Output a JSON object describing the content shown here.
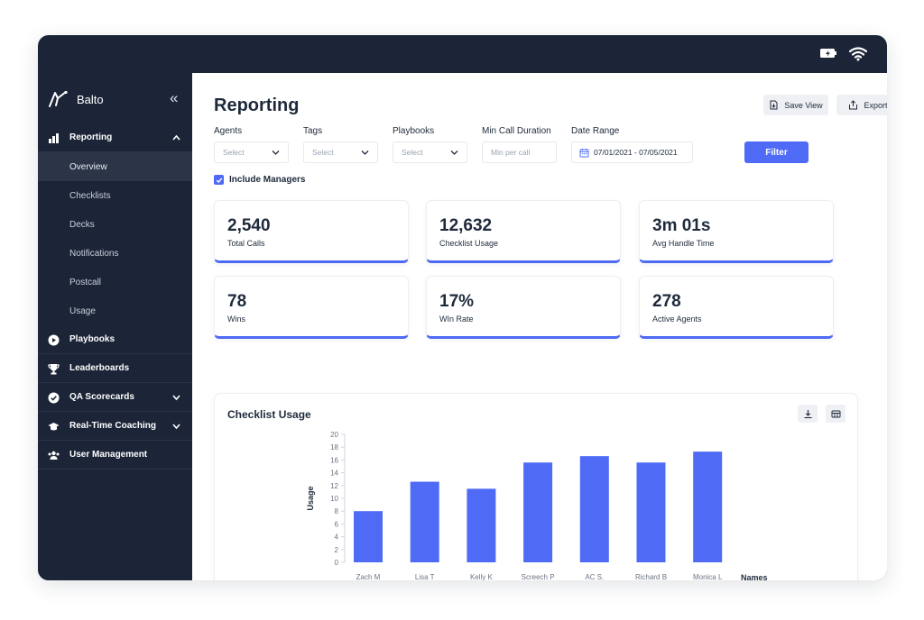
{
  "app": {
    "name": "Balto"
  },
  "sidebar": {
    "items": [
      {
        "key": "reporting",
        "label": "Reporting",
        "icon": "bar-chart-icon",
        "expanded": true,
        "children": [
          {
            "label": "Overview",
            "active": true
          },
          {
            "label": "Checklists"
          },
          {
            "label": "Decks"
          },
          {
            "label": "Notifications"
          },
          {
            "label": "Postcall"
          },
          {
            "label": "Usage"
          }
        ]
      },
      {
        "key": "playbooks",
        "label": "Playbooks",
        "icon": "play-circle-icon"
      },
      {
        "key": "leaderboards",
        "label": "Leaderboards",
        "icon": "trophy-icon"
      },
      {
        "key": "qa",
        "label": "QA Scorecards",
        "icon": "check-circle-icon",
        "caret": "down"
      },
      {
        "key": "coaching",
        "label": "Real-Time Coaching",
        "icon": "graduation-cap-icon",
        "caret": "down"
      },
      {
        "key": "users",
        "label": "User Management",
        "icon": "users-icon"
      }
    ]
  },
  "header": {
    "title": "Reporting",
    "save_view_label": "Save View",
    "export_label": "Export"
  },
  "filters": {
    "agents": {
      "label": "Agents",
      "value": "Select"
    },
    "tags": {
      "label": "Tags",
      "value": "Select"
    },
    "playbooks": {
      "label": "Playbooks",
      "value": "Select"
    },
    "min_call_duration": {
      "label": "Min Call Duration",
      "placeholder": "Min per call"
    },
    "date_range": {
      "label": "Date Range",
      "value": "07/01/2021 - 07/05/2021"
    },
    "filter_button": "Filter",
    "include_managers": {
      "label": "Include Managers",
      "checked": true
    }
  },
  "kpis": [
    {
      "value": "2,540",
      "label": "Total Calls"
    },
    {
      "value": "12,632",
      "label": "Checklist Usage"
    },
    {
      "value": "3m 01s",
      "label": "Avg Handle Time"
    },
    {
      "value": "78",
      "label": "Wins"
    },
    {
      "value": "17%",
      "label": "WIn Rate"
    },
    {
      "value": "278",
      "label": "Active Agents"
    }
  ],
  "chart_card": {
    "title": "Checklist Usage"
  },
  "chart_data": {
    "type": "bar",
    "title": "Checklist Usage",
    "categories": [
      "Zach M",
      "Lisa T",
      "Kelly K",
      "Screech P",
      "AC S.",
      "Richard B",
      "Monica L"
    ],
    "values": [
      8,
      12.6,
      11.5,
      15.6,
      16.6,
      15.6,
      17.3
    ],
    "xlabel": "Names",
    "ylabel": "Usage",
    "ylim": [
      0,
      20
    ],
    "yticks": [
      0,
      2,
      4,
      6,
      8,
      10,
      12,
      14,
      16,
      18,
      20
    ],
    "grid": false,
    "bar_color": "#4f6bf5"
  },
  "colors": {
    "sidebar_bg": "#1c2538",
    "accent": "#4f6bf5",
    "text": "#1e2a3b"
  }
}
